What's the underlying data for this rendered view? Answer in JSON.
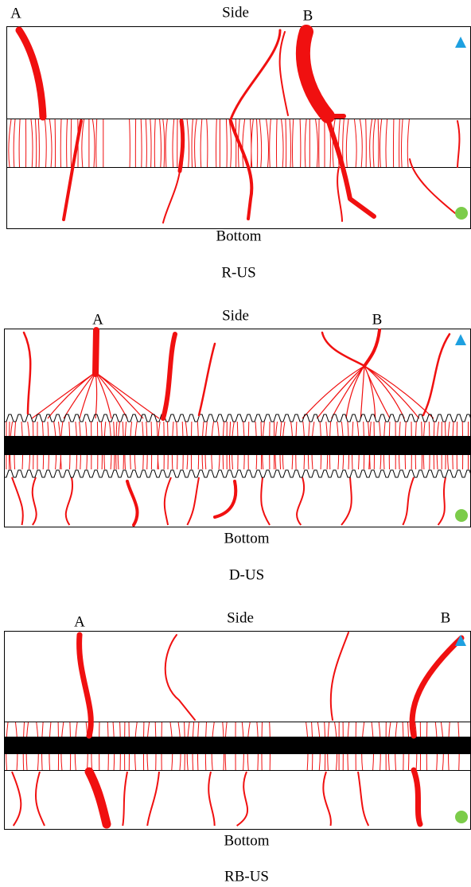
{
  "panels": [
    {
      "label_a": "A",
      "side": "Side",
      "label_b": "B",
      "bottom": "Bottom",
      "caption": "R-US"
    },
    {
      "label_a": "A",
      "side": "Side",
      "label_b": "B",
      "bottom": "Bottom",
      "caption": "D-US"
    },
    {
      "label_a": "A",
      "side": "Side",
      "label_b": "B",
      "bottom": "Bottom",
      "caption": "RB-US"
    }
  ]
}
